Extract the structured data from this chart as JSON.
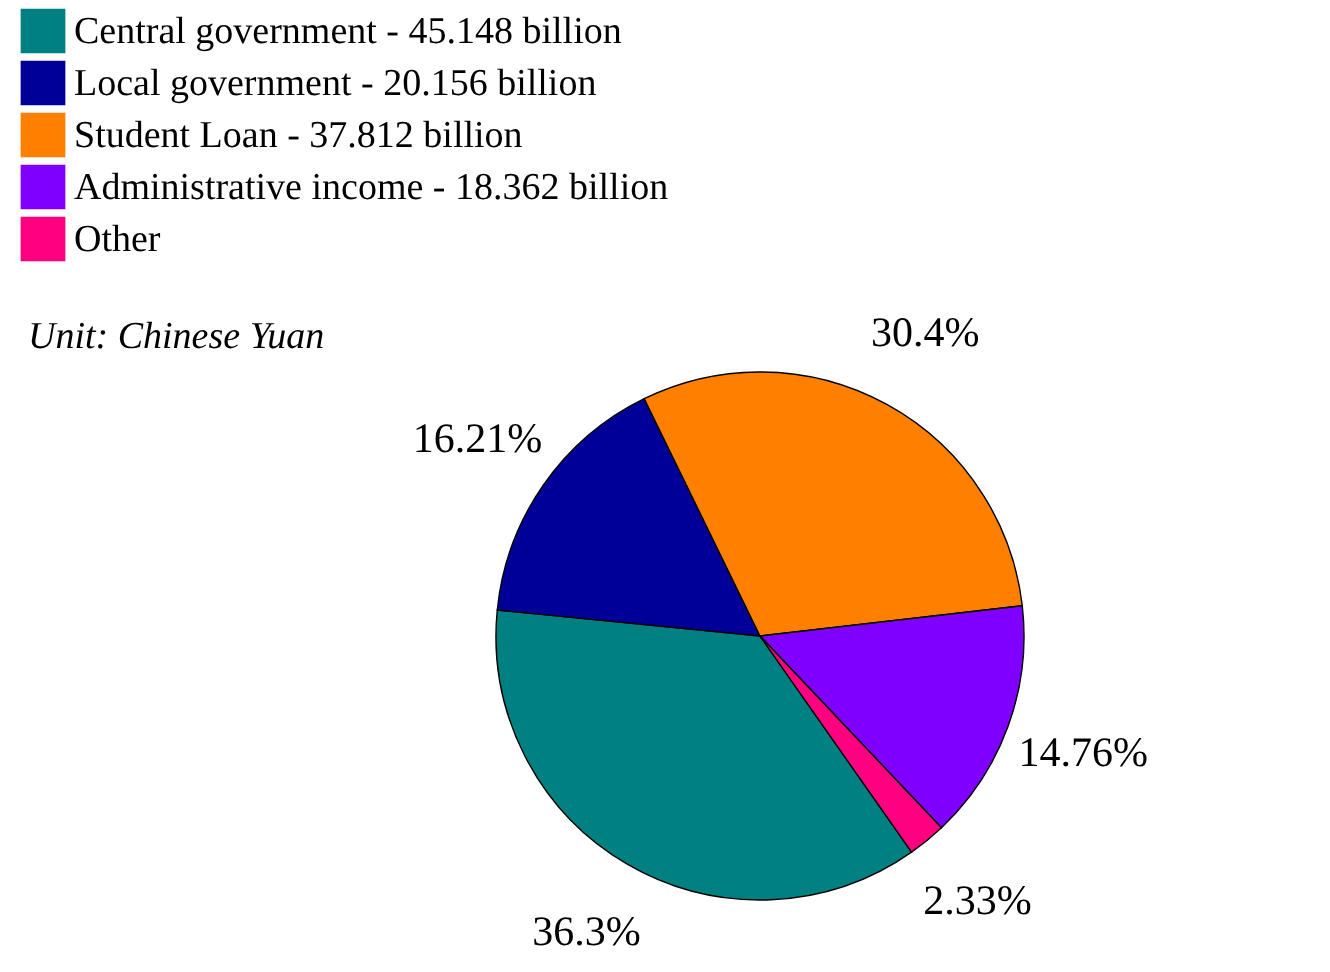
{
  "chart_data": {
    "type": "pie",
    "categories": [
      "Central government -  45.148 billion",
      "Local government -  20.156 billion",
      "Student Loan - 37.812 billion",
      "Administrative income - 18.362 billion",
      "Other"
    ],
    "values": [
      36.3,
      16.21,
      30.4,
      14.76,
      2.33
    ],
    "colors": [
      "#008080",
      "#000099",
      "#ff8000",
      "#8000ff",
      "#ff0080"
    ],
    "value_labels": [
      "36.3%",
      "16.21%",
      "30.4%",
      "14.76%",
      "2.33%"
    ],
    "annotations": [
      "Unit: Chinese Yuan"
    ],
    "legend": "top left"
  }
}
